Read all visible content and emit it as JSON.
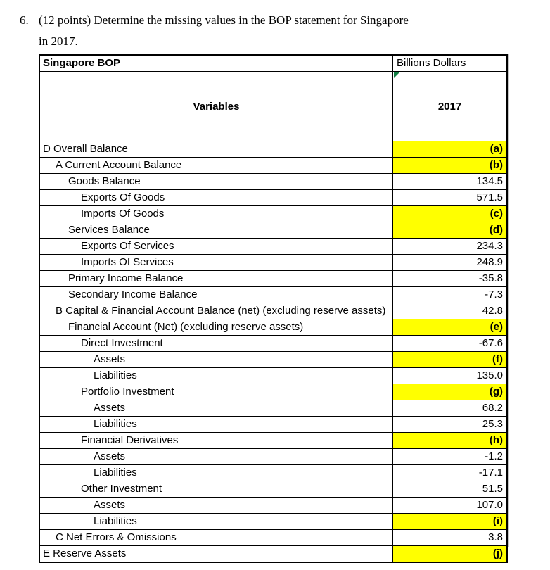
{
  "question": {
    "number": "6.",
    "line1": "(12 points) Determine the missing values in the BOP statement for Singapore",
    "line2": "in 2017."
  },
  "table": {
    "title": "Singapore BOP",
    "unit": "Billions Dollars",
    "columns": {
      "variables": "Variables",
      "year": "2017"
    },
    "rows": [
      {
        "label": "D Overall Balance",
        "indent": 0,
        "value": "(a)",
        "highlight": true
      },
      {
        "label": "A Current Account Balance",
        "indent": 1,
        "value": "(b)",
        "highlight": true
      },
      {
        "label": "Goods Balance",
        "indent": 2,
        "value": "134.5",
        "highlight": false
      },
      {
        "label": "Exports Of Goods",
        "indent": 3,
        "value": "571.5",
        "highlight": false
      },
      {
        "label": "Imports Of Goods",
        "indent": 3,
        "value": "(c)",
        "highlight": true
      },
      {
        "label": "Services Balance",
        "indent": 2,
        "value": "(d)",
        "highlight": true
      },
      {
        "label": "Exports Of Services",
        "indent": 3,
        "value": "234.3",
        "highlight": false
      },
      {
        "label": "Imports Of Services",
        "indent": 3,
        "value": "248.9",
        "highlight": false
      },
      {
        "label": "Primary Income Balance",
        "indent": 2,
        "value": "-35.8",
        "highlight": false
      },
      {
        "label": "Secondary Income Balance",
        "indent": 2,
        "value": "-7.3",
        "highlight": false
      },
      {
        "label": "B Capital & Financial Account Balance (net) (excluding reserve assets)",
        "indent": 1,
        "value": "42.8",
        "highlight": false
      },
      {
        "label": "Financial Account (Net) (excluding reserve assets)",
        "indent": 2,
        "value": "(e)",
        "highlight": true
      },
      {
        "label": "Direct Investment",
        "indent": 3,
        "value": "-67.6",
        "highlight": false
      },
      {
        "label": "Assets",
        "indent": 4,
        "value": "(f)",
        "highlight": true
      },
      {
        "label": "Liabilities",
        "indent": 4,
        "value": "135.0",
        "highlight": false
      },
      {
        "label": "Portfolio Investment",
        "indent": 3,
        "value": "(g)",
        "highlight": true
      },
      {
        "label": "Assets",
        "indent": 4,
        "value": "68.2",
        "highlight": false
      },
      {
        "label": "Liabilities",
        "indent": 4,
        "value": "25.3",
        "highlight": false
      },
      {
        "label": "Financial Derivatives",
        "indent": 3,
        "value": "(h)",
        "highlight": true
      },
      {
        "label": "Assets",
        "indent": 4,
        "value": "-1.2",
        "highlight": false
      },
      {
        "label": "Liabilities",
        "indent": 4,
        "value": "-17.1",
        "highlight": false
      },
      {
        "label": "Other Investment",
        "indent": 3,
        "value": "51.5",
        "highlight": false
      },
      {
        "label": "Assets",
        "indent": 4,
        "value": "107.0",
        "highlight": false
      },
      {
        "label": "Liabilities",
        "indent": 4,
        "value": "(i)",
        "highlight": true
      },
      {
        "label": "C Net Errors & Omissions",
        "indent": 1,
        "value": "3.8",
        "highlight": false
      },
      {
        "label": "E Reserve Assets",
        "indent": 0,
        "value": "(j)",
        "highlight": true
      }
    ]
  },
  "colors": {
    "highlight_yellow": "#ffff00",
    "marker_green": "#107c41"
  }
}
